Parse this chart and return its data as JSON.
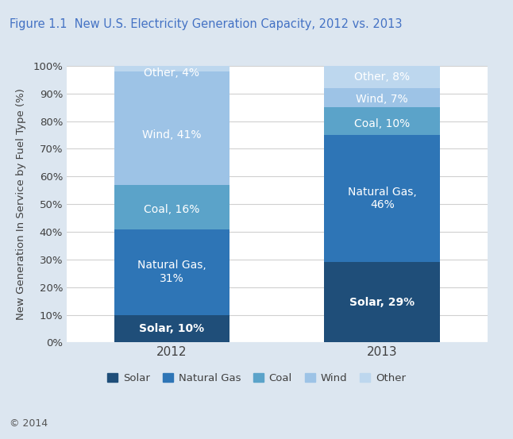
{
  "title": "Figure 1.1  New U.S. Electricity Generation Capacity, 2012 vs. 2013",
  "years": [
    "2012",
    "2013"
  ],
  "categories": [
    "Solar",
    "Natural Gas",
    "Coal",
    "Wind",
    "Other"
  ],
  "values": {
    "2012": [
      10,
      31,
      16,
      41,
      4
    ],
    "2013": [
      29,
      46,
      10,
      7,
      8
    ]
  },
  "colors": {
    "Solar": "#1f4e79",
    "Natural Gas": "#2e75b6",
    "Coal": "#5ba3c9",
    "Wind": "#9dc3e6",
    "Other": "#bdd7ee"
  },
  "ylabel": "New Generation In Service by Fuel Type (%)",
  "yticks": [
    0,
    10,
    20,
    30,
    40,
    50,
    60,
    70,
    80,
    90,
    100
  ],
  "ylim": [
    0,
    100
  ],
  "label_fontsize": 10,
  "title_fontsize": 10.5,
  "legend_fontsize": 9.5,
  "bar_width": 0.55,
  "outer_bg_color": "#dce6f0",
  "inner_bg_color": "#f2f2f2",
  "plot_bg_color": "#ffffff",
  "title_area_color": "#ffffff",
  "footer_bg_color": "#c0cdd8",
  "grid_color": "#d0d0d0",
  "text_color": "#404040",
  "title_color": "#4472c4",
  "copyright_text": "© 2014",
  "label_positions_2012": {
    "Solar": [
      0,
      5,
      "Solar, 10%",
      true
    ],
    "Natural Gas": [
      0,
      25.5,
      "Natural Gas,\n31%",
      false
    ],
    "Coal": [
      0,
      48,
      "Coal, 16%",
      false
    ],
    "Wind": [
      0,
      75,
      "Wind, 41%",
      false
    ],
    "Other": [
      0,
      97.5,
      "Other, 4%",
      false
    ]
  },
  "label_positions_2013": {
    "Solar": [
      1,
      14.5,
      "Solar, 29%",
      true
    ],
    "Natural Gas": [
      1,
      52,
      "Natural Gas,\n46%",
      false
    ],
    "Coal": [
      1,
      79,
      "Coal, 10%",
      false
    ],
    "Wind": [
      1,
      88,
      "Wind, 7%",
      false
    ],
    "Other": [
      1,
      96,
      "Other, 8%",
      false
    ]
  }
}
